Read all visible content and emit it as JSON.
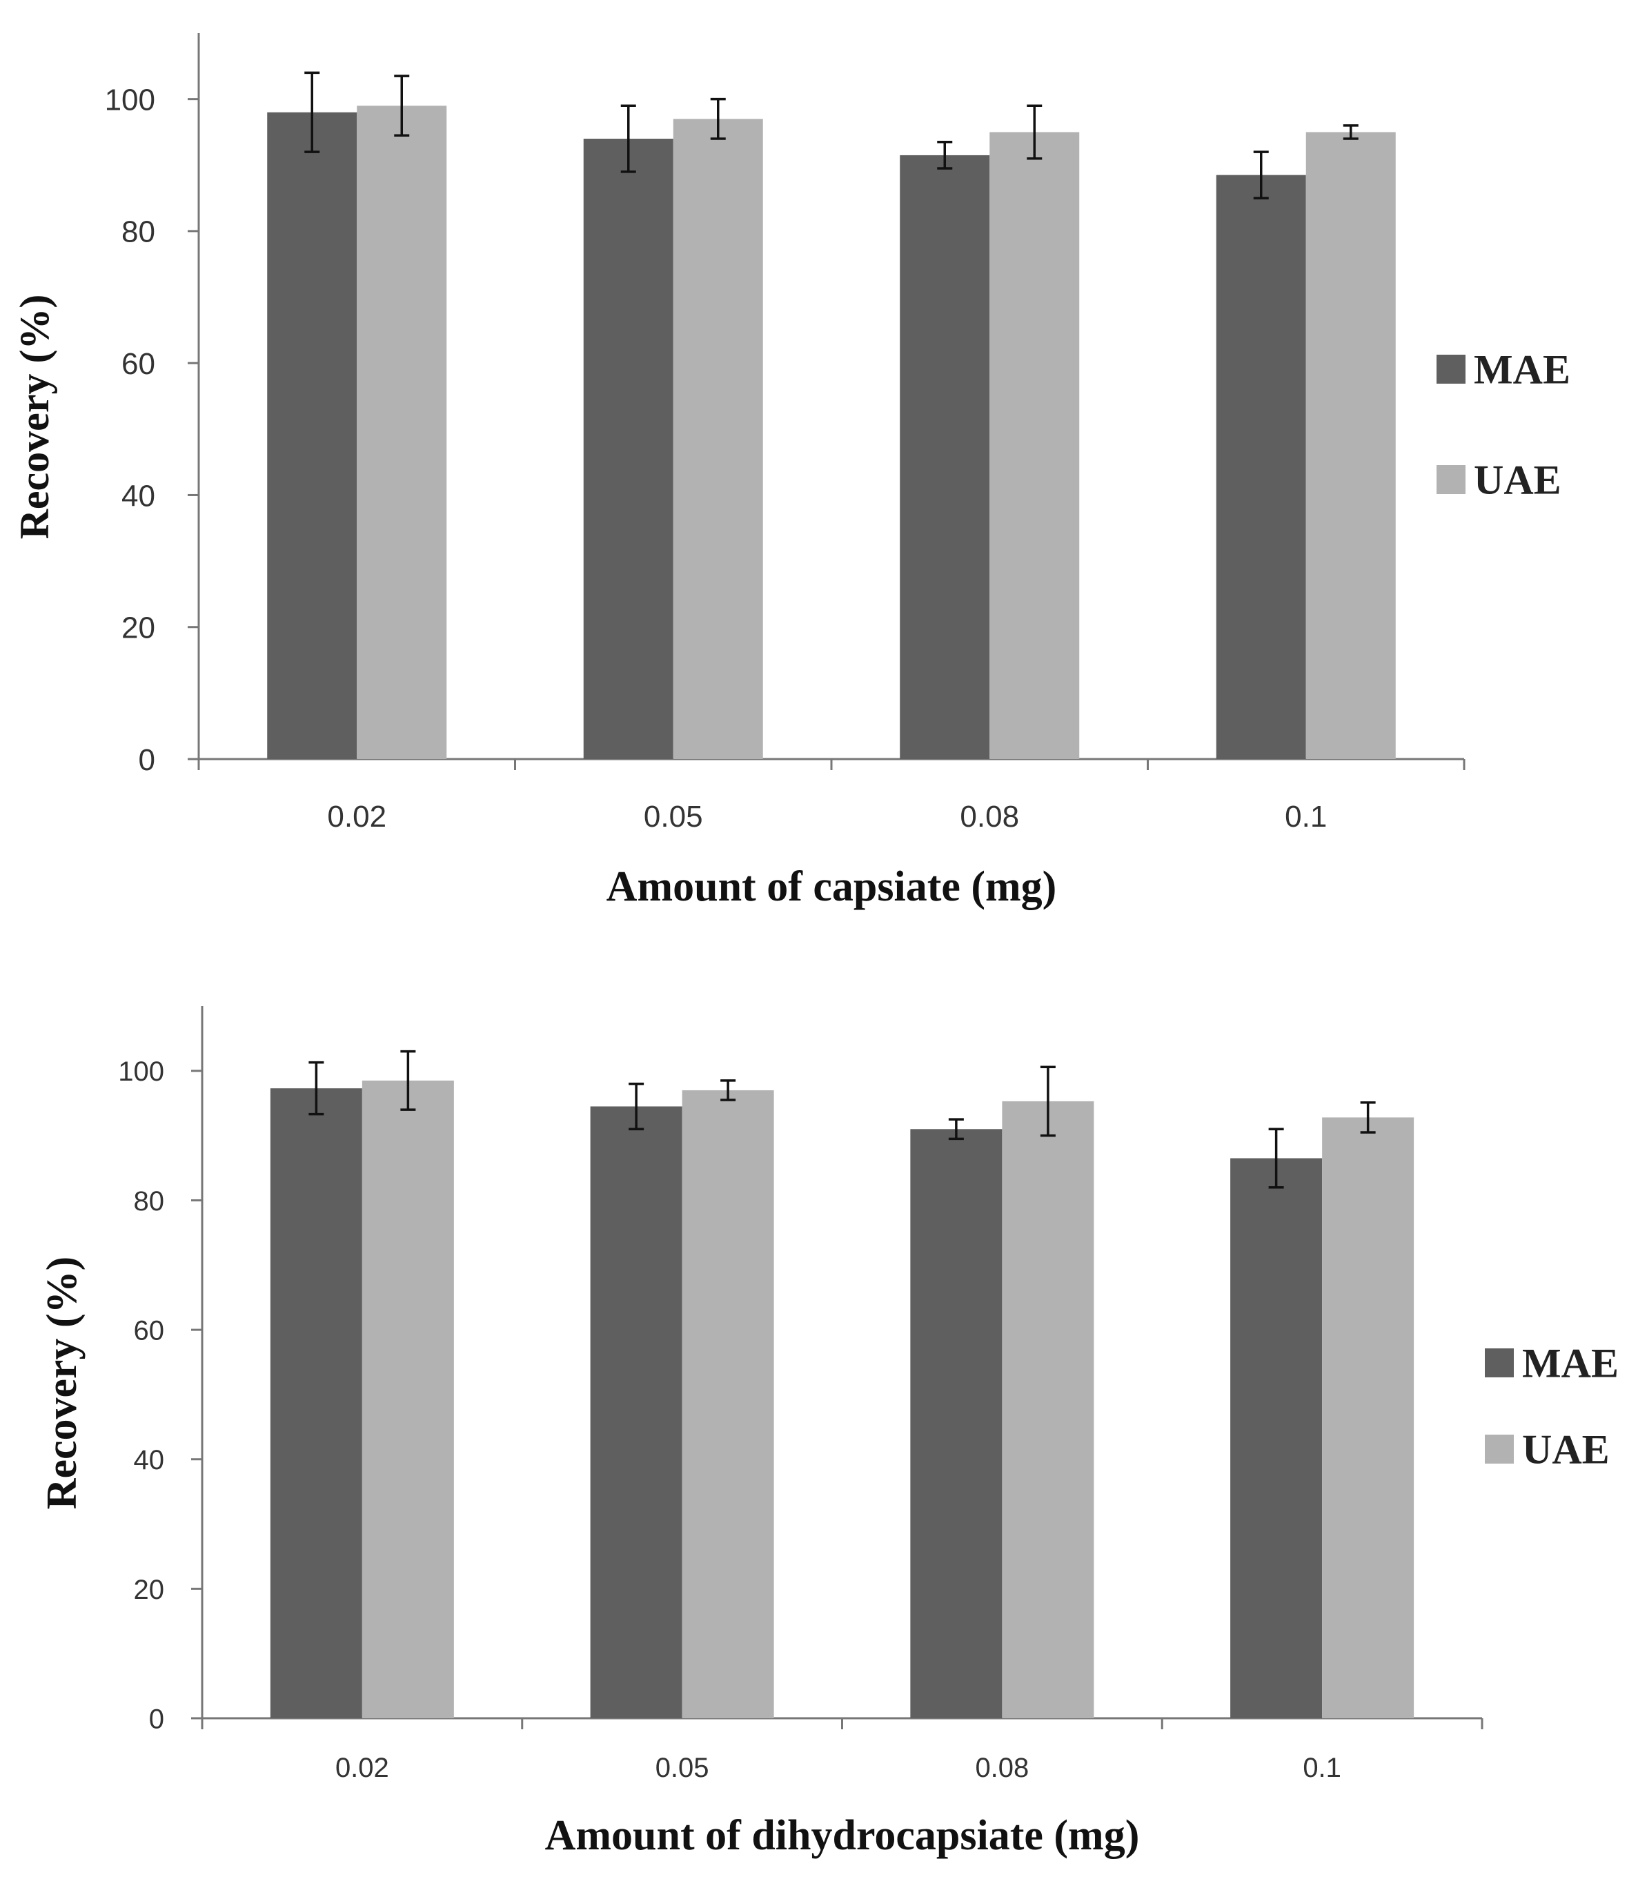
{
  "chart_data": [
    {
      "type": "bar",
      "title": "",
      "xlabel": "Amount of capsiate (mg)",
      "ylabel": "Recovery (%)",
      "categories": [
        "0.02",
        "0.05",
        "0.08",
        "0.1"
      ],
      "ylim": [
        0,
        110
      ],
      "yticks": [
        0,
        20,
        40,
        60,
        80,
        100
      ],
      "grid": false,
      "legend_position": "right",
      "series": [
        {
          "name": "MAE",
          "color": "#5f5f5f",
          "values": [
            98,
            94,
            91.5,
            88.5
          ],
          "errors": [
            6,
            5,
            2,
            3.5
          ]
        },
        {
          "name": "UAE",
          "color": "#b2b2b2",
          "values": [
            99,
            97,
            95,
            95
          ],
          "errors": [
            4.5,
            3,
            4,
            1
          ]
        }
      ]
    },
    {
      "type": "bar",
      "title": "",
      "xlabel": "Amount of dihydrocapsiate (mg)",
      "ylabel": "Recovery (%)",
      "categories": [
        "0.02",
        "0.05",
        "0.08",
        "0.1"
      ],
      "ylim": [
        0,
        110
      ],
      "yticks": [
        0,
        20,
        40,
        60,
        80,
        100
      ],
      "grid": false,
      "legend_position": "right",
      "series": [
        {
          "name": "MAE",
          "color": "#5f5f5f",
          "values": [
            97.3,
            94.5,
            91,
            86.5
          ],
          "errors": [
            4,
            3.5,
            1.5,
            4.5
          ]
        },
        {
          "name": "UAE",
          "color": "#b2b2b2",
          "values": [
            98.5,
            97,
            95.3,
            92.8
          ],
          "errors": [
            4.5,
            1.5,
            5.3,
            2.3
          ]
        }
      ]
    }
  ]
}
